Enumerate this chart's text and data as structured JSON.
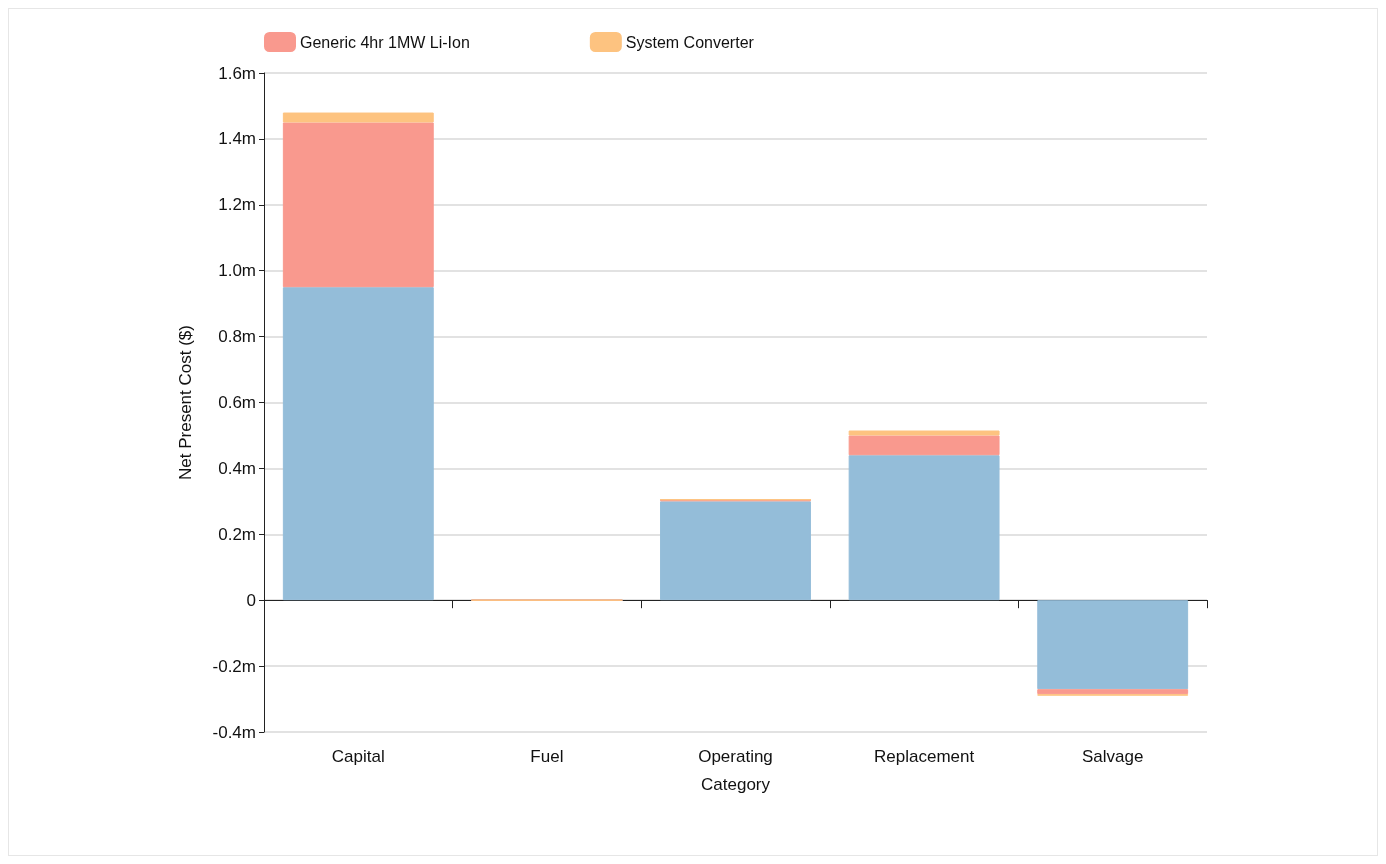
{
  "chart_data": {
    "type": "bar",
    "stacked": true,
    "xlabel": "Category",
    "ylabel": "Net Present Cost ($)",
    "categories": [
      "Capital",
      "Fuel",
      "Operating",
      "Replacement",
      "Salvage"
    ],
    "series": [
      {
        "color": "#94bdd9",
        "values": [
          0.95,
          0,
          0.3,
          0.44,
          -0.27
        ]
      },
      {
        "name": "Generic 4hr 1MW Li-Ion",
        "color": "#f9998e",
        "values": [
          0.5,
          0,
          0.005,
          0.06,
          -0.015
        ]
      },
      {
        "name": "System Converter",
        "color": "#fdc380",
        "values": [
          0.03,
          0,
          0,
          0.015,
          -0.005
        ]
      }
    ],
    "ylim": [
      -0.4,
      1.6
    ],
    "yticks": [
      {
        "value": -0.4,
        "label": "-0.4m"
      },
      {
        "value": -0.2,
        "label": "-0.2m"
      },
      0,
      {
        "value": 0.2,
        "label": "0.2m"
      },
      {
        "value": 0.4,
        "label": "0.4m"
      },
      {
        "value": 0.6,
        "label": "0.6m"
      },
      {
        "value": 0.8,
        "label": "0.8m"
      },
      {
        "value": 1.0,
        "label": "1.0m"
      },
      {
        "value": 1.2,
        "label": "1.2m"
      },
      {
        "value": 1.4,
        "label": "1.4m"
      },
      {
        "value": 1.6,
        "label": "1.6m"
      }
    ],
    "grid": "y",
    "legend": "top"
  }
}
